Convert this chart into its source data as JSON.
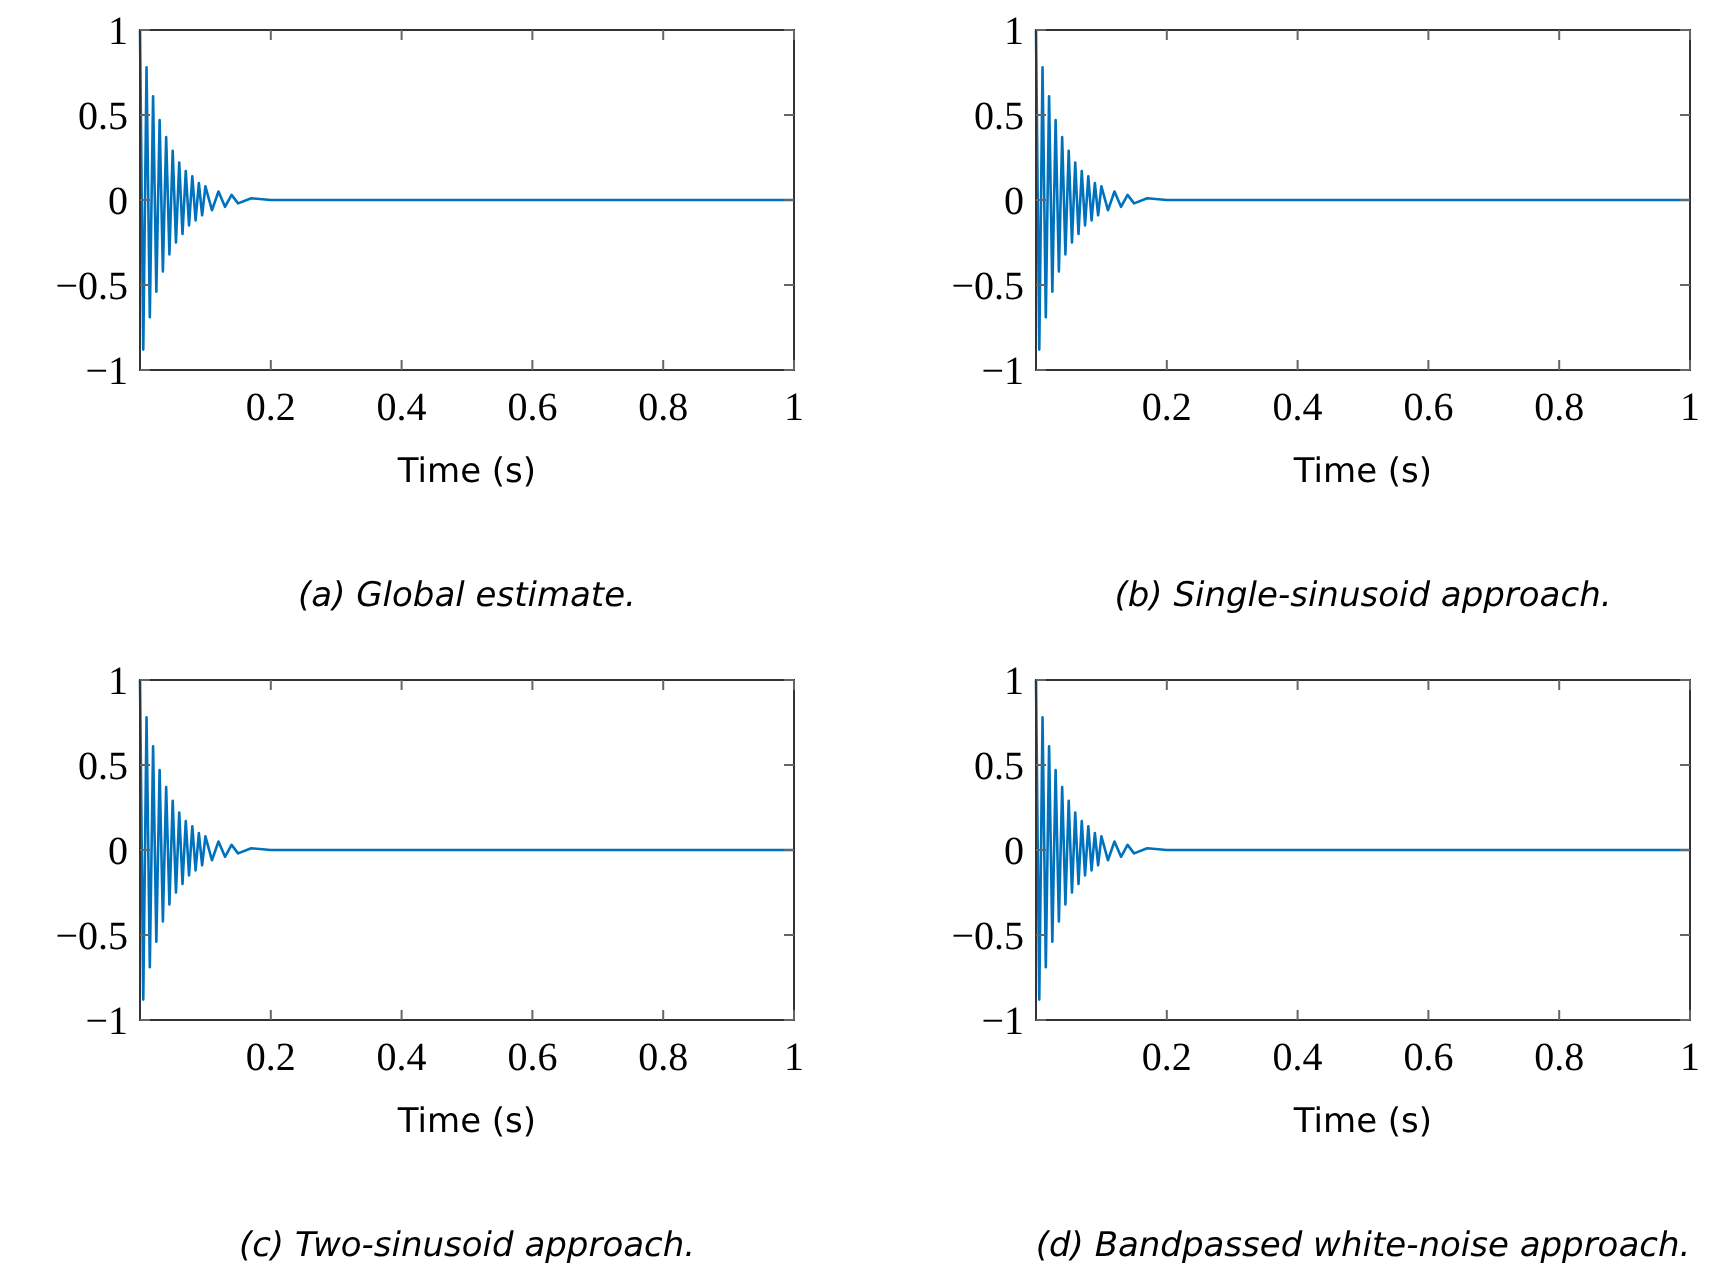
{
  "chart_data": [
    {
      "type": "line",
      "title": "(a) Global estimate.",
      "xlabel": "Time (s)",
      "xlim": [
        0,
        1
      ],
      "ylim": [
        -1,
        1
      ],
      "xticks": [
        0.2,
        0.4,
        0.6,
        0.8,
        1
      ],
      "yticks": [
        -1,
        -0.5,
        0,
        0.5,
        1
      ],
      "color": "#0072bd",
      "x": [
        0,
        0.005,
        0.01,
        0.015,
        0.02,
        0.025,
        0.03,
        0.035,
        0.04,
        0.045,
        0.05,
        0.055,
        0.06,
        0.065,
        0.07,
        0.075,
        0.08,
        0.085,
        0.09,
        0.095,
        0.1,
        0.11,
        0.12,
        0.13,
        0.14,
        0.15,
        0.17,
        0.2,
        1
      ],
      "values": [
        1,
        -0.88,
        0.78,
        -0.69,
        0.61,
        -0.54,
        0.47,
        -0.42,
        0.37,
        -0.32,
        0.29,
        -0.25,
        0.22,
        -0.2,
        0.17,
        -0.15,
        0.14,
        -0.12,
        0.1,
        -0.09,
        0.08,
        -0.06,
        0.05,
        -0.04,
        0.03,
        -0.02,
        0.01,
        0,
        0
      ]
    },
    {
      "type": "line",
      "title": "(b) Single-sinusoid approach.",
      "xlabel": "Time (s)",
      "xlim": [
        0,
        1
      ],
      "ylim": [
        -1,
        1
      ],
      "xticks": [
        0.2,
        0.4,
        0.6,
        0.8,
        1
      ],
      "yticks": [
        -1,
        -0.5,
        0,
        0.5,
        1
      ],
      "color": "#0072bd",
      "x": [
        0,
        0.005,
        0.01,
        0.015,
        0.02,
        0.025,
        0.03,
        0.035,
        0.04,
        0.045,
        0.05,
        0.055,
        0.06,
        0.065,
        0.07,
        0.075,
        0.08,
        0.085,
        0.09,
        0.095,
        0.1,
        0.11,
        0.12,
        0.13,
        0.14,
        0.15,
        0.17,
        0.2,
        1
      ],
      "values": [
        1,
        -0.88,
        0.78,
        -0.69,
        0.61,
        -0.54,
        0.47,
        -0.42,
        0.37,
        -0.32,
        0.29,
        -0.25,
        0.22,
        -0.2,
        0.17,
        -0.15,
        0.14,
        -0.12,
        0.1,
        -0.09,
        0.08,
        -0.06,
        0.05,
        -0.04,
        0.03,
        -0.02,
        0.01,
        0,
        0
      ]
    },
    {
      "type": "line",
      "title": "(c) Two-sinusoid approach.",
      "xlabel": "Time (s)",
      "xlim": [
        0,
        1
      ],
      "ylim": [
        -1,
        1
      ],
      "xticks": [
        0.2,
        0.4,
        0.6,
        0.8,
        1
      ],
      "yticks": [
        -1,
        -0.5,
        0,
        0.5,
        1
      ],
      "color": "#0072bd",
      "x": [
        0,
        0.005,
        0.01,
        0.015,
        0.02,
        0.025,
        0.03,
        0.035,
        0.04,
        0.045,
        0.05,
        0.055,
        0.06,
        0.065,
        0.07,
        0.075,
        0.08,
        0.085,
        0.09,
        0.095,
        0.1,
        0.11,
        0.12,
        0.13,
        0.14,
        0.15,
        0.17,
        0.2,
        1
      ],
      "values": [
        1,
        -0.88,
        0.78,
        -0.69,
        0.61,
        -0.54,
        0.47,
        -0.42,
        0.37,
        -0.32,
        0.29,
        -0.25,
        0.22,
        -0.2,
        0.17,
        -0.15,
        0.14,
        -0.12,
        0.1,
        -0.09,
        0.08,
        -0.06,
        0.05,
        -0.04,
        0.03,
        -0.02,
        0.01,
        0,
        0
      ]
    },
    {
      "type": "line",
      "title": "(d) Bandpassed white-noise approach.",
      "xlabel": "Time (s)",
      "xlim": [
        0,
        1
      ],
      "ylim": [
        -1,
        1
      ],
      "xticks": [
        0.2,
        0.4,
        0.6,
        0.8,
        1
      ],
      "yticks": [
        -1,
        -0.5,
        0,
        0.5,
        1
      ],
      "color": "#0072bd",
      "x": [
        0,
        0.005,
        0.01,
        0.015,
        0.02,
        0.025,
        0.03,
        0.035,
        0.04,
        0.045,
        0.05,
        0.055,
        0.06,
        0.065,
        0.07,
        0.075,
        0.08,
        0.085,
        0.09,
        0.095,
        0.1,
        0.11,
        0.12,
        0.13,
        0.14,
        0.15,
        0.17,
        0.2,
        1
      ],
      "values": [
        1,
        -0.88,
        0.78,
        -0.69,
        0.61,
        -0.54,
        0.47,
        -0.42,
        0.37,
        -0.32,
        0.29,
        -0.25,
        0.22,
        -0.2,
        0.17,
        -0.15,
        0.14,
        -0.12,
        0.1,
        -0.09,
        0.08,
        -0.06,
        0.05,
        -0.04,
        0.03,
        -0.02,
        0.01,
        0,
        0
      ]
    }
  ]
}
